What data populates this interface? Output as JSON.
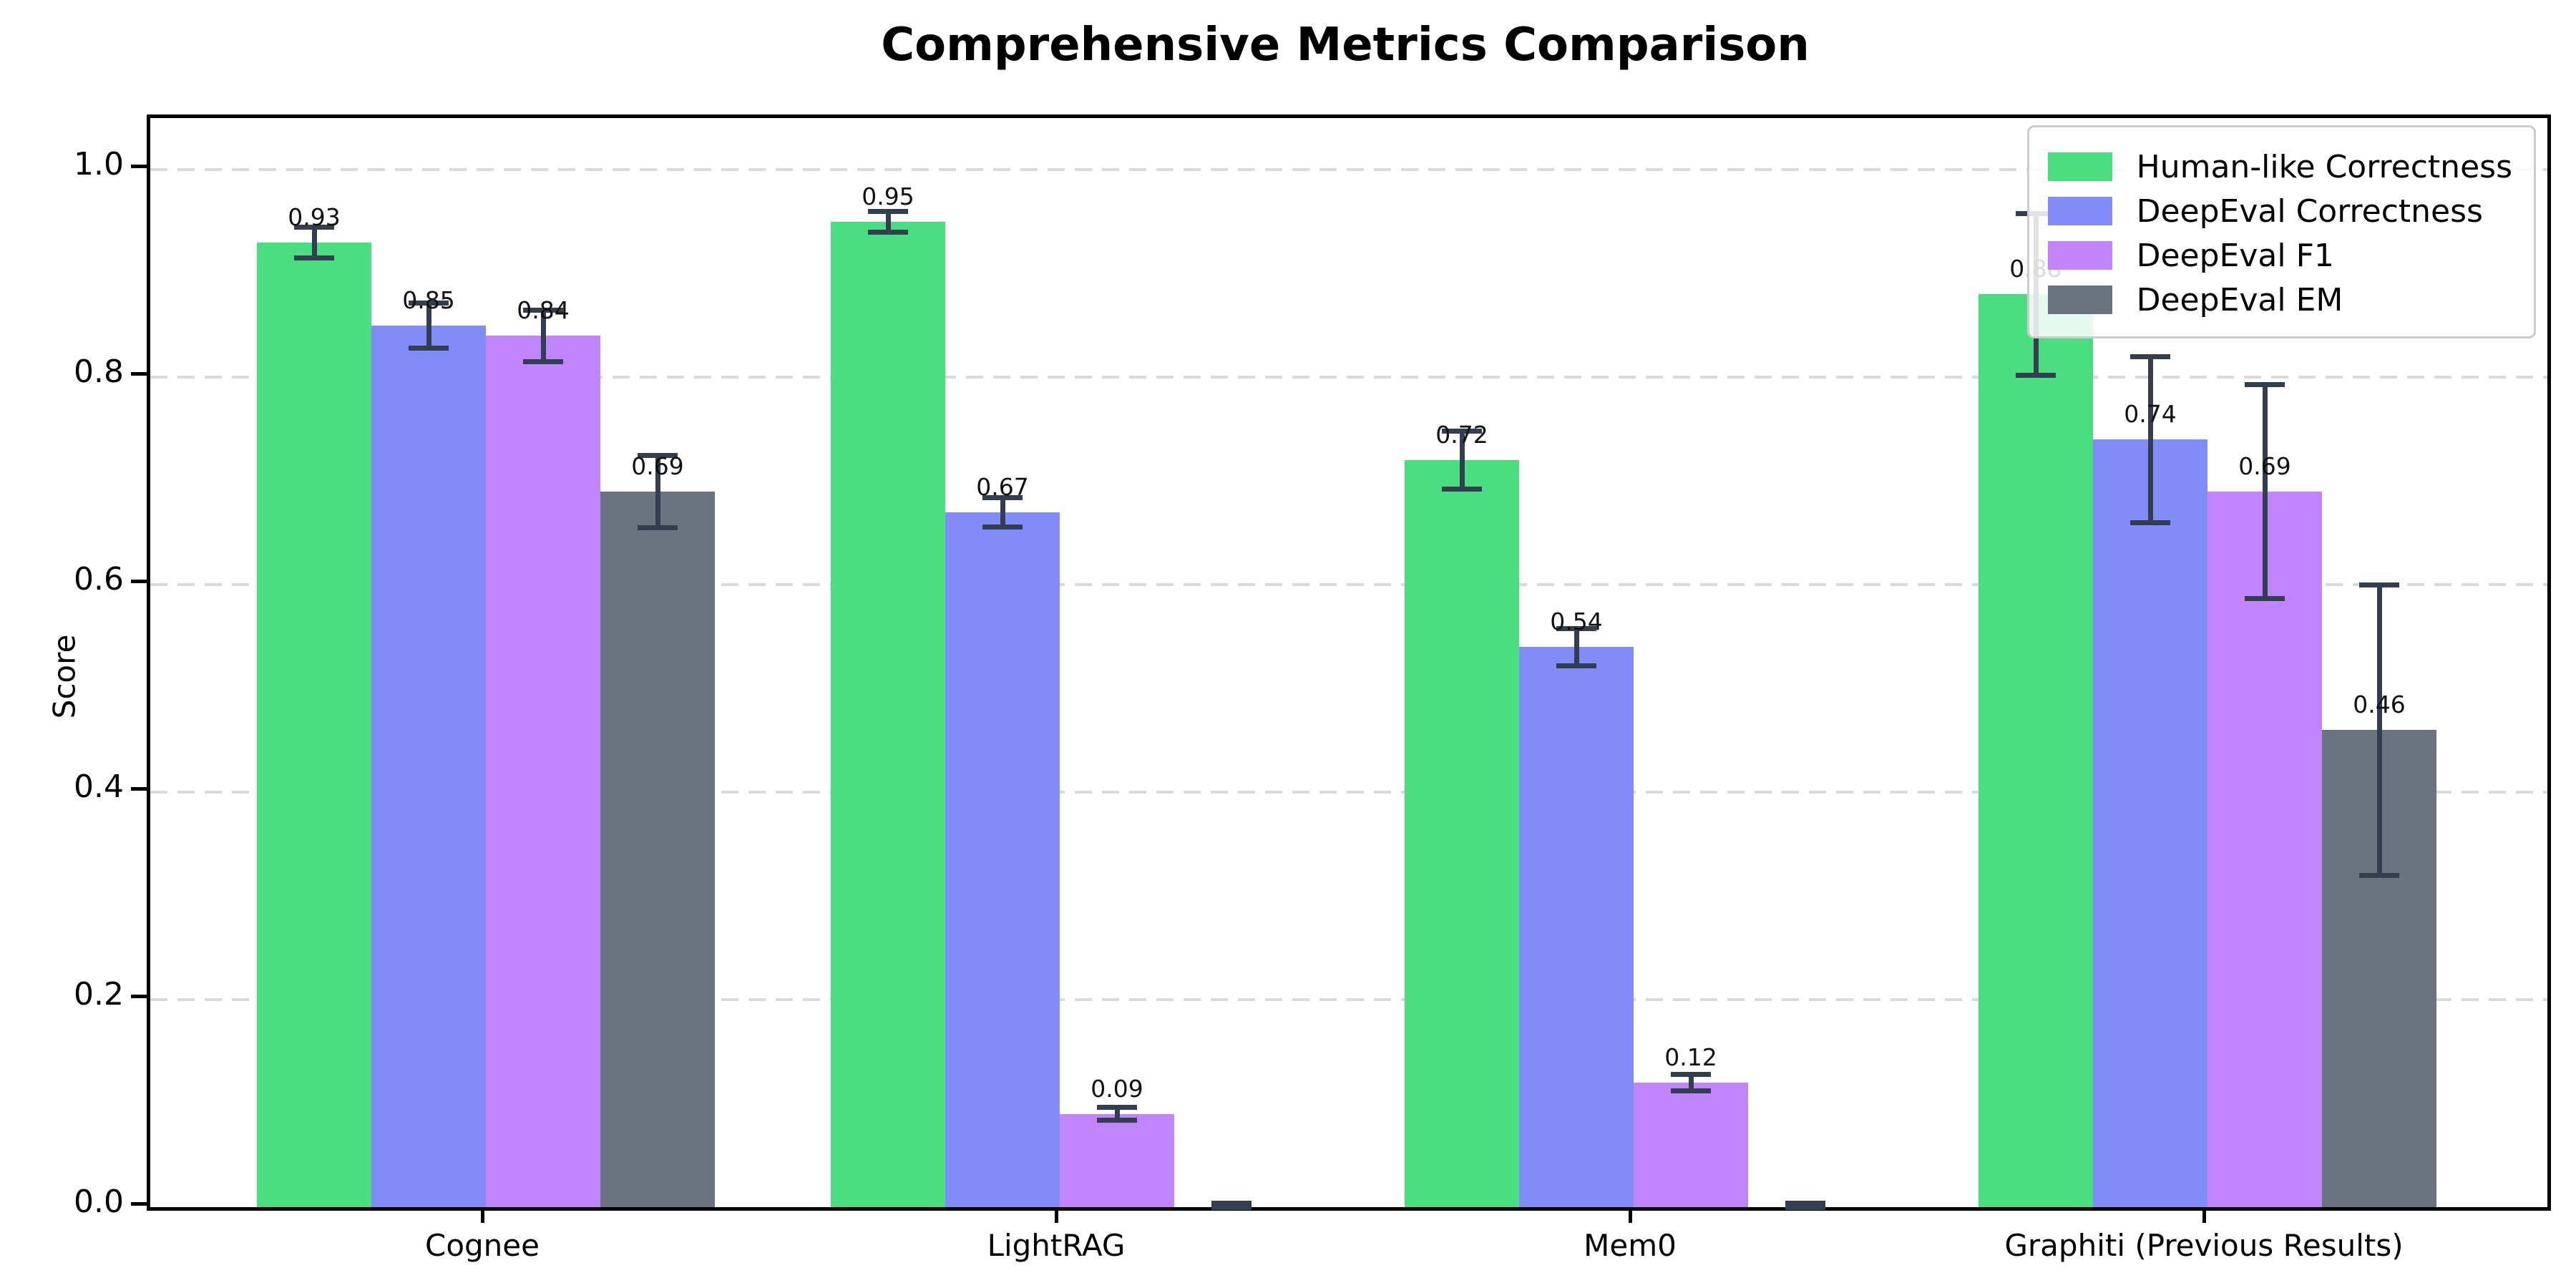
{
  "title": "Comprehensive Metrics Comparison",
  "chart_data": {
    "type": "bar",
    "title": "Comprehensive Metrics Comparison",
    "xlabel": "",
    "ylabel": "Score",
    "ylim": [
      0,
      1.05
    ],
    "yticks": [
      0.0,
      0.2,
      0.4,
      0.6,
      0.8,
      1.0
    ],
    "grid": "horizontal dashed gridlines at yticks",
    "legend_position": "upper right",
    "background": "#ffffff",
    "grid_color": "#d9d9d9",
    "error_bar_color": "#333e50",
    "categories": [
      "Cognee",
      "LightRAG",
      "Mem0",
      "Graphiti (Previous Results)"
    ],
    "series": [
      {
        "name": "Human-like Correctness",
        "color": "#4ade80",
        "values": [
          0.93,
          0.95,
          0.72,
          0.88
        ],
        "errors": [
          0.015,
          0.01,
          0.028,
          0.078
        ],
        "labels": [
          "0.93",
          "0.95",
          "0.72",
          "0.88"
        ]
      },
      {
        "name": "DeepEval Correctness",
        "color": "#818cf8",
        "values": [
          0.85,
          0.67,
          0.54,
          0.74
        ],
        "errors": [
          0.022,
          0.014,
          0.018,
          0.08
        ],
        "labels": [
          "0.85",
          "0.67",
          "0.54",
          "0.74"
        ]
      },
      {
        "name": "DeepEval F1",
        "color": "#c084fc",
        "values": [
          0.84,
          0.09,
          0.12,
          0.69
        ],
        "errors": [
          0.025,
          0.006,
          0.008,
          0.103
        ],
        "labels": [
          "0.84",
          "0.09",
          "0.12",
          "0.69"
        ]
      },
      {
        "name": "DeepEval EM",
        "color": "#6b7280",
        "values": [
          0.69,
          0.0,
          0.0,
          0.46
        ],
        "errors": [
          0.035,
          0.004,
          0.004,
          0.14
        ],
        "labels": [
          "0.69",
          null,
          null,
          "0.46"
        ]
      }
    ]
  }
}
